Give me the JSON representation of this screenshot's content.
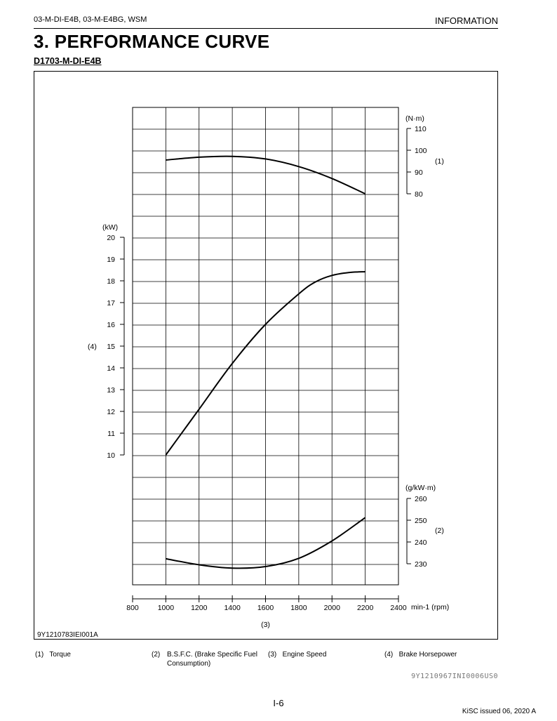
{
  "header": {
    "left": "03-M-DI-E4B, 03-M-E4BG, WSM",
    "right": "INFORMATION"
  },
  "title": "3.  PERFORMANCE CURVE",
  "subtitle": "D1703-M-DI-E4B",
  "figure_code": "9Y1210783IEI001A",
  "legend": [
    {
      "num": "(1)",
      "text": "Torque"
    },
    {
      "num": "(2)",
      "text": "B.S.F.C. (Brake Specific Fuel Consumption)"
    },
    {
      "num": "(3)",
      "text": "Engine Speed"
    },
    {
      "num": "(4)",
      "text": "Brake Horsepower"
    }
  ],
  "doc_code": "9Y1210967INI0006US0",
  "page_number": "I-6",
  "footer": "KiSC issued 06, 2020 A",
  "chart_data": {
    "type": "line",
    "x": {
      "label": "(3)",
      "unit": "min-1 (rpm)",
      "range": [
        800,
        2400
      ],
      "ticks": [
        "800",
        "1000",
        "1200",
        "1400",
        "1600",
        "1800",
        "2000",
        "2200",
        "2400"
      ]
    },
    "axes": {
      "torque": {
        "callout": "(1)",
        "unit": "(N·m)",
        "range": [
          80,
          110
        ],
        "ticks": [
          "80",
          "90",
          "100",
          "110"
        ]
      },
      "power": {
        "callout": "(4)",
        "unit": "(kW)",
        "range": [
          10,
          20
        ],
        "ticks": [
          "10",
          "11",
          "12",
          "13",
          "14",
          "15",
          "16",
          "17",
          "18",
          "19",
          "20"
        ]
      },
      "bsfc": {
        "callout": "(2)",
        "unit": "(g/kW·m)",
        "range": [
          230,
          260
        ],
        "ticks": [
          "230",
          "240",
          "250",
          "260"
        ]
      }
    },
    "series": [
      {
        "axis": "torque",
        "x": [
          1000,
          1200,
          1400,
          1600,
          1800,
          2000,
          2200
        ],
        "y": [
          95.5,
          96.8,
          97.2,
          96,
          92.5,
          87,
          80
        ]
      },
      {
        "axis": "power",
        "x": [
          1000,
          1200,
          1400,
          1600,
          1800,
          1900,
          2000,
          2100,
          2200
        ],
        "y": [
          10,
          12.1,
          14.2,
          16,
          17.4,
          17.95,
          18.25,
          18.38,
          18.42
        ]
      },
      {
        "axis": "bsfc",
        "x": [
          1000,
          1200,
          1400,
          1600,
          1800,
          2000,
          2200
        ],
        "y": [
          232.3,
          229.5,
          228,
          228.7,
          232.5,
          240.5,
          251.2
        ]
      }
    ]
  }
}
